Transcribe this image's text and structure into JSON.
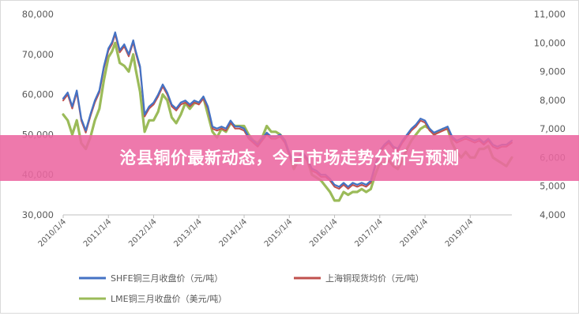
{
  "chart_data": {
    "type": "line",
    "x_ticks": [
      "2010/1/4",
      "2011/1/4",
      "2012/1/4",
      "2013/1/4",
      "2014/1/4",
      "2015/1/4",
      "2016/1/4",
      "2017/1/4",
      "2018/1/4",
      "2019/1/4"
    ],
    "y_left_ticks": [
      "30,000",
      "40,000",
      "50,000",
      "60,000",
      "70,000",
      "80,000"
    ],
    "y_right_ticks": [
      "4,000",
      "5,000",
      "6,000",
      "7,000",
      "8,000",
      "9,000",
      "10,000",
      "11,000"
    ],
    "y_left_range": [
      30000,
      80000
    ],
    "y_right_range": [
      4000,
      11000
    ],
    "x_range": [
      2010.0,
      2019.92
    ],
    "grid": false,
    "legend_position": "bottom",
    "series": [
      {
        "name": "SHFE铜三月收盘价（元/吨）",
        "axis": "left",
        "color": "#4472c4",
        "x": [
          2010.0,
          2010.1,
          2010.2,
          2010.3,
          2010.4,
          2010.5,
          2010.6,
          2010.7,
          2010.8,
          2010.9,
          2011.0,
          2011.08,
          2011.15,
          2011.25,
          2011.35,
          2011.45,
          2011.55,
          2011.6,
          2011.7,
          2011.8,
          2011.9,
          2012.0,
          2012.1,
          2012.2,
          2012.3,
          2012.4,
          2012.5,
          2012.6,
          2012.7,
          2012.8,
          2012.9,
          2013.0,
          2013.1,
          2013.2,
          2013.3,
          2013.4,
          2013.5,
          2013.6,
          2013.7,
          2013.8,
          2013.9,
          2014.0,
          2014.1,
          2014.2,
          2014.3,
          2014.4,
          2014.5,
          2014.6,
          2014.7,
          2014.8,
          2014.9,
          2015.0,
          2015.1,
          2015.2,
          2015.3,
          2015.4,
          2015.5,
          2015.6,
          2015.7,
          2015.8,
          2015.9,
          2016.0,
          2016.1,
          2016.2,
          2016.3,
          2016.4,
          2016.5,
          2016.6,
          2016.7,
          2016.8,
          2016.9,
          2017.0,
          2017.1,
          2017.2,
          2017.3,
          2017.4,
          2017.5,
          2017.6,
          2017.7,
          2017.8,
          2017.9,
          2018.0,
          2018.1,
          2018.2,
          2018.3,
          2018.4,
          2018.5,
          2018.6,
          2018.7,
          2018.8,
          2018.9,
          2019.0,
          2019.1,
          2019.2,
          2019.3,
          2019.4,
          2019.5,
          2019.6,
          2019.7,
          2019.8,
          2019.92
        ],
        "y": [
          59000,
          60500,
          57000,
          61000,
          54000,
          51000,
          55000,
          58500,
          61000,
          67000,
          71500,
          73000,
          75500,
          71000,
          72500,
          70000,
          73500,
          71000,
          67000,
          55000,
          57000,
          58000,
          60000,
          62500,
          60500,
          57500,
          56500,
          58000,
          58500,
          57500,
          58500,
          58000,
          59500,
          57000,
          52000,
          51500,
          52000,
          51500,
          53500,
          52000,
          52000,
          51500,
          49500,
          48500,
          47500,
          49000,
          50500,
          49500,
          49500,
          50000,
          48500,
          45500,
          43000,
          44500,
          45500,
          44000,
          41500,
          41000,
          40000,
          40000,
          39000,
          37500,
          37000,
          38000,
          37000,
          38000,
          37500,
          38000,
          37500,
          38500,
          42500,
          46000,
          47500,
          48500,
          47000,
          46500,
          48500,
          50000,
          51500,
          52500,
          54000,
          53500,
          51500,
          50500,
          51000,
          51500,
          52000,
          49500,
          48500,
          49000,
          49500,
          49000,
          48500,
          49000,
          48000,
          49000,
          47500,
          47000,
          47500,
          47500,
          48500
        ]
      },
      {
        "name": "上海铜现货均价（元/吨）",
        "axis": "left",
        "color": "#c0504d",
        "x": [
          2010.0,
          2010.1,
          2010.2,
          2010.3,
          2010.4,
          2010.5,
          2010.6,
          2010.7,
          2010.8,
          2010.9,
          2011.0,
          2011.08,
          2011.15,
          2011.25,
          2011.35,
          2011.45,
          2011.55,
          2011.6,
          2011.7,
          2011.8,
          2011.9,
          2012.0,
          2012.1,
          2012.2,
          2012.3,
          2012.4,
          2012.5,
          2012.6,
          2012.7,
          2012.8,
          2012.9,
          2013.0,
          2013.1,
          2013.2,
          2013.3,
          2013.4,
          2013.5,
          2013.6,
          2013.7,
          2013.8,
          2013.9,
          2014.0,
          2014.1,
          2014.2,
          2014.3,
          2014.4,
          2014.5,
          2014.6,
          2014.7,
          2014.8,
          2014.9,
          2015.0,
          2015.1,
          2015.2,
          2015.3,
          2015.4,
          2015.5,
          2015.6,
          2015.7,
          2015.8,
          2015.9,
          2016.0,
          2016.1,
          2016.2,
          2016.3,
          2016.4,
          2016.5,
          2016.6,
          2016.7,
          2016.8,
          2016.9,
          2017.0,
          2017.1,
          2017.2,
          2017.3,
          2017.4,
          2017.5,
          2017.6,
          2017.7,
          2017.8,
          2017.9,
          2018.0,
          2018.1,
          2018.2,
          2018.3,
          2018.4,
          2018.5,
          2018.6,
          2018.7,
          2018.8,
          2018.9,
          2019.0,
          2019.1,
          2019.2,
          2019.3,
          2019.4,
          2019.5,
          2019.6,
          2019.7,
          2019.8,
          2019.92
        ],
        "y": [
          58500,
          60000,
          56500,
          60500,
          53500,
          50500,
          54500,
          58000,
          60500,
          66500,
          71000,
          72500,
          75000,
          70500,
          72000,
          69500,
          73000,
          70500,
          66500,
          54500,
          56500,
          57500,
          59500,
          62000,
          60000,
          57000,
          56000,
          57500,
          58000,
          57000,
          58000,
          57500,
          59000,
          56500,
          51500,
          51000,
          51500,
          51000,
          53000,
          51500,
          51500,
          51000,
          49000,
          48000,
          47000,
          48500,
          50000,
          49000,
          49000,
          49500,
          48000,
          45000,
          42500,
          44000,
          45000,
          43500,
          41000,
          40500,
          39500,
          39500,
          38500,
          37000,
          36500,
          37500,
          36500,
          37500,
          37000,
          37500,
          37000,
          38000,
          42000,
          45500,
          47000,
          48000,
          46500,
          46000,
          48000,
          49500,
          51000,
          52000,
          53500,
          53000,
          51000,
          50000,
          50500,
          51000,
          51500,
          49000,
          48000,
          48500,
          49000,
          48500,
          48000,
          48500,
          47500,
          48500,
          47000,
          46500,
          47000,
          47000,
          48000
        ]
      },
      {
        "name": "LME铜三月收盘价（美元/吨）",
        "axis": "right",
        "color": "#9bbb59",
        "x": [
          2010.0,
          2010.1,
          2010.2,
          2010.3,
          2010.4,
          2010.5,
          2010.6,
          2010.7,
          2010.8,
          2010.9,
          2011.0,
          2011.08,
          2011.15,
          2011.25,
          2011.35,
          2011.45,
          2011.55,
          2011.6,
          2011.7,
          2011.8,
          2011.9,
          2012.0,
          2012.1,
          2012.2,
          2012.3,
          2012.4,
          2012.5,
          2012.6,
          2012.7,
          2012.8,
          2012.9,
          2013.0,
          2013.1,
          2013.2,
          2013.3,
          2013.4,
          2013.5,
          2013.6,
          2013.7,
          2013.8,
          2013.9,
          2014.0,
          2014.1,
          2014.2,
          2014.3,
          2014.4,
          2014.5,
          2014.6,
          2014.7,
          2014.8,
          2014.9,
          2015.0,
          2015.1,
          2015.2,
          2015.3,
          2015.4,
          2015.5,
          2015.6,
          2015.7,
          2015.8,
          2015.9,
          2016.0,
          2016.1,
          2016.2,
          2016.3,
          2016.4,
          2016.5,
          2016.6,
          2016.7,
          2016.8,
          2016.9,
          2017.0,
          2017.1,
          2017.2,
          2017.3,
          2017.4,
          2017.5,
          2017.6,
          2017.7,
          2017.8,
          2017.9,
          2018.0,
          2018.1,
          2018.2,
          2018.3,
          2018.4,
          2018.5,
          2018.6,
          2018.7,
          2018.8,
          2018.9,
          2019.0,
          2019.1,
          2019.2,
          2019.3,
          2019.4,
          2019.5,
          2019.6,
          2019.7,
          2019.8,
          2019.92
        ],
        "y": [
          7500,
          7300,
          6800,
          7300,
          6500,
          6300,
          6700,
          7300,
          7700,
          8700,
          9500,
          9700,
          10000,
          9300,
          9200,
          9000,
          9600,
          9100,
          8300,
          6900,
          7300,
          7300,
          7600,
          8200,
          8000,
          7400,
          7200,
          7500,
          7900,
          7700,
          7900,
          7900,
          8100,
          7500,
          6900,
          6700,
          7000,
          6900,
          7200,
          7100,
          7100,
          7100,
          6800,
          6600,
          6500,
          6700,
          7100,
          6900,
          6900,
          6800,
          6600,
          6100,
          5600,
          5900,
          6100,
          5900,
          5400,
          5300,
          5200,
          5000,
          4800,
          4500,
          4500,
          4800,
          4700,
          4800,
          4800,
          4900,
          4800,
          4900,
          5400,
          5800,
          5800,
          5900,
          5700,
          5600,
          5900,
          6300,
          6600,
          6800,
          7000,
          7100,
          7000,
          6800,
          6900,
          7000,
          7000,
          6500,
          6200,
          6000,
          6200,
          6000,
          6000,
          6300,
          6300,
          6400,
          6000,
          5900,
          5800,
          5700,
          6000
        ]
      }
    ]
  },
  "banner": {
    "title": "沧县铜价最新动态，今日市场走势分析与预测"
  }
}
